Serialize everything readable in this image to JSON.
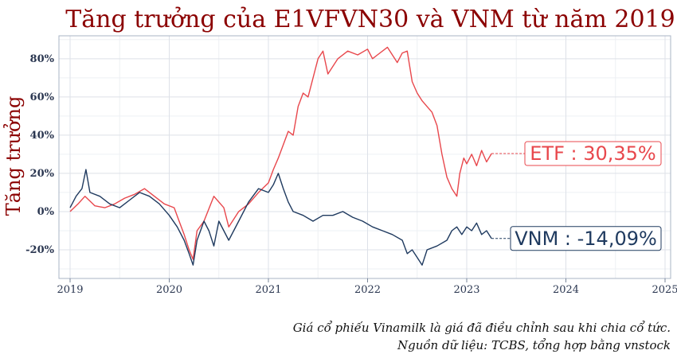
{
  "chart_data": {
    "type": "line",
    "title": "Tăng trưởng của E1VFVN30 và VNM từ năm 2019",
    "ylabel": "Tăng trưởng",
    "xlabel": "",
    "xlim": [
      2019,
      2025
    ],
    "ylim": [
      -35,
      92
    ],
    "x_ticks": [
      "2019",
      "2020",
      "2021",
      "2022",
      "2023",
      "2024",
      "2025"
    ],
    "y_ticks": [
      {
        "value": -20,
        "label": "-20%"
      },
      {
        "value": 0,
        "label": "0%"
      },
      {
        "value": 20,
        "label": "20%"
      },
      {
        "value": 40,
        "label": "40%"
      },
      {
        "value": 60,
        "label": "60%"
      },
      {
        "value": 80,
        "label": "80%"
      }
    ],
    "grid": true,
    "series": [
      {
        "name": "ETF",
        "label": "ETF : 30,35%",
        "color": "#e8474c",
        "x": [
          2019.0,
          2019.08,
          2019.15,
          2019.25,
          2019.35,
          2019.45,
          2019.55,
          2019.65,
          2019.75,
          2019.85,
          2019.95,
          2020.05,
          2020.1,
          2020.15,
          2020.2,
          2020.24,
          2020.28,
          2020.35,
          2020.45,
          2020.55,
          2020.6,
          2020.7,
          2020.8,
          2020.9,
          2021.0,
          2021.05,
          2021.1,
          2021.15,
          2021.2,
          2021.25,
          2021.3,
          2021.35,
          2021.4,
          2021.5,
          2021.55,
          2021.6,
          2021.7,
          2021.8,
          2021.9,
          2022.0,
          2022.05,
          2022.1,
          2022.2,
          2022.3,
          2022.35,
          2022.4,
          2022.45,
          2022.5,
          2022.55,
          2022.6,
          2022.65,
          2022.7,
          2022.75,
          2022.8,
          2022.85,
          2022.9,
          2022.93,
          2022.97,
          2023.0,
          2023.05,
          2023.1,
          2023.15,
          2023.2,
          2023.25
        ],
        "y": [
          0,
          4,
          8,
          3,
          2,
          4,
          7,
          9,
          12,
          8,
          4,
          2,
          -5,
          -12,
          -20,
          -25,
          -10,
          -5,
          8,
          2,
          -8,
          0,
          4,
          10,
          15,
          22,
          28,
          35,
          42,
          40,
          55,
          62,
          60,
          80,
          84,
          72,
          80,
          84,
          82,
          85,
          80,
          82,
          86,
          78,
          83,
          84,
          68,
          62,
          58,
          55,
          52,
          45,
          30,
          18,
          12,
          8,
          20,
          28,
          25,
          30,
          24,
          32,
          26,
          30.35
        ]
      },
      {
        "name": "VNM",
        "label": "VNM : -14,09%",
        "color": "#1f3a5f",
        "x": [
          2019.0,
          2019.06,
          2019.12,
          2019.16,
          2019.2,
          2019.3,
          2019.4,
          2019.5,
          2019.6,
          2019.7,
          2019.8,
          2019.9,
          2020.0,
          2020.08,
          2020.15,
          2020.2,
          2020.24,
          2020.28,
          2020.35,
          2020.4,
          2020.45,
          2020.5,
          2020.55,
          2020.6,
          2020.7,
          2020.8,
          2020.9,
          2021.0,
          2021.05,
          2021.1,
          2021.15,
          2021.2,
          2021.25,
          2021.35,
          2021.45,
          2021.55,
          2021.65,
          2021.75,
          2021.85,
          2021.95,
          2022.05,
          2022.15,
          2022.25,
          2022.35,
          2022.4,
          2022.45,
          2022.5,
          2022.55,
          2022.6,
          2022.7,
          2022.8,
          2022.85,
          2022.9,
          2022.95,
          2023.0,
          2023.05,
          2023.1,
          2023.15,
          2023.2,
          2023.25
        ],
        "y": [
          2,
          8,
          12,
          22,
          10,
          8,
          4,
          2,
          6,
          10,
          8,
          4,
          -2,
          -8,
          -15,
          -22,
          -28,
          -15,
          -5,
          -10,
          -18,
          -5,
          -10,
          -15,
          -5,
          5,
          12,
          10,
          14,
          20,
          12,
          5,
          0,
          -2,
          -5,
          -2,
          -2,
          0,
          -3,
          -5,
          -8,
          -10,
          -12,
          -15,
          -22,
          -20,
          -24,
          -28,
          -20,
          -18,
          -15,
          -10,
          -8,
          -12,
          -8,
          -10,
          -6,
          -12,
          -10,
          -14.09
        ]
      }
    ]
  },
  "captions": {
    "line1": "Giá cổ phiếu Vinamilk là giá đã điều chỉnh sau khi chia cổ tức.",
    "line2": "Nguồn dữ liệu: TCBS, tổng hợp bằng vnstock"
  }
}
